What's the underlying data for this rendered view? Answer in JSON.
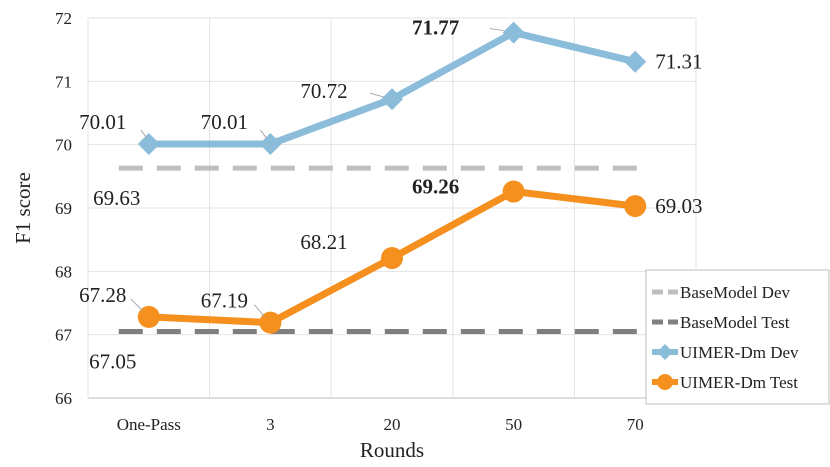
{
  "chart_data": {
    "type": "line",
    "xlabel": "Rounds",
    "ylabel": "F1 score",
    "categories": [
      "One-Pass",
      "3",
      "20",
      "50",
      "70"
    ],
    "ylim": [
      66,
      72
    ],
    "yticks": [
      66,
      67,
      68,
      69,
      70,
      71,
      72
    ],
    "grid": "vertical and horizontal",
    "legend_position": "bottom-right",
    "series": [
      {
        "name": "BaseModel Dev",
        "values": [
          69.63,
          69.63,
          69.63,
          69.63,
          69.63
        ],
        "color": "#bfbfbf",
        "style": "dashed",
        "labels": [
          "69.63",
          "",
          "",
          "",
          ""
        ]
      },
      {
        "name": "BaseModel Test",
        "values": [
          67.05,
          67.05,
          67.05,
          67.05,
          67.05
        ],
        "color": "#7f7f7f",
        "style": "dashed",
        "labels": [
          "67.05",
          "",
          "",
          "",
          ""
        ]
      },
      {
        "name": "UIMER-Dm Dev",
        "values": [
          70.01,
          70.01,
          70.72,
          71.77,
          71.31
        ],
        "color": "#8bbcda",
        "style": "solid",
        "marker": "diamond",
        "labels": [
          "70.01",
          "70.01",
          "70.72",
          "71.77",
          "71.31"
        ],
        "bold_index": 3
      },
      {
        "name": "UIMER-Dm Test",
        "values": [
          67.28,
          67.19,
          68.21,
          69.26,
          69.03
        ],
        "color": "#f5901e",
        "style": "solid",
        "marker": "circle",
        "labels": [
          "67.28",
          "67.19",
          "68.21",
          "69.26",
          "69.03"
        ],
        "bold_index": 3
      }
    ]
  }
}
